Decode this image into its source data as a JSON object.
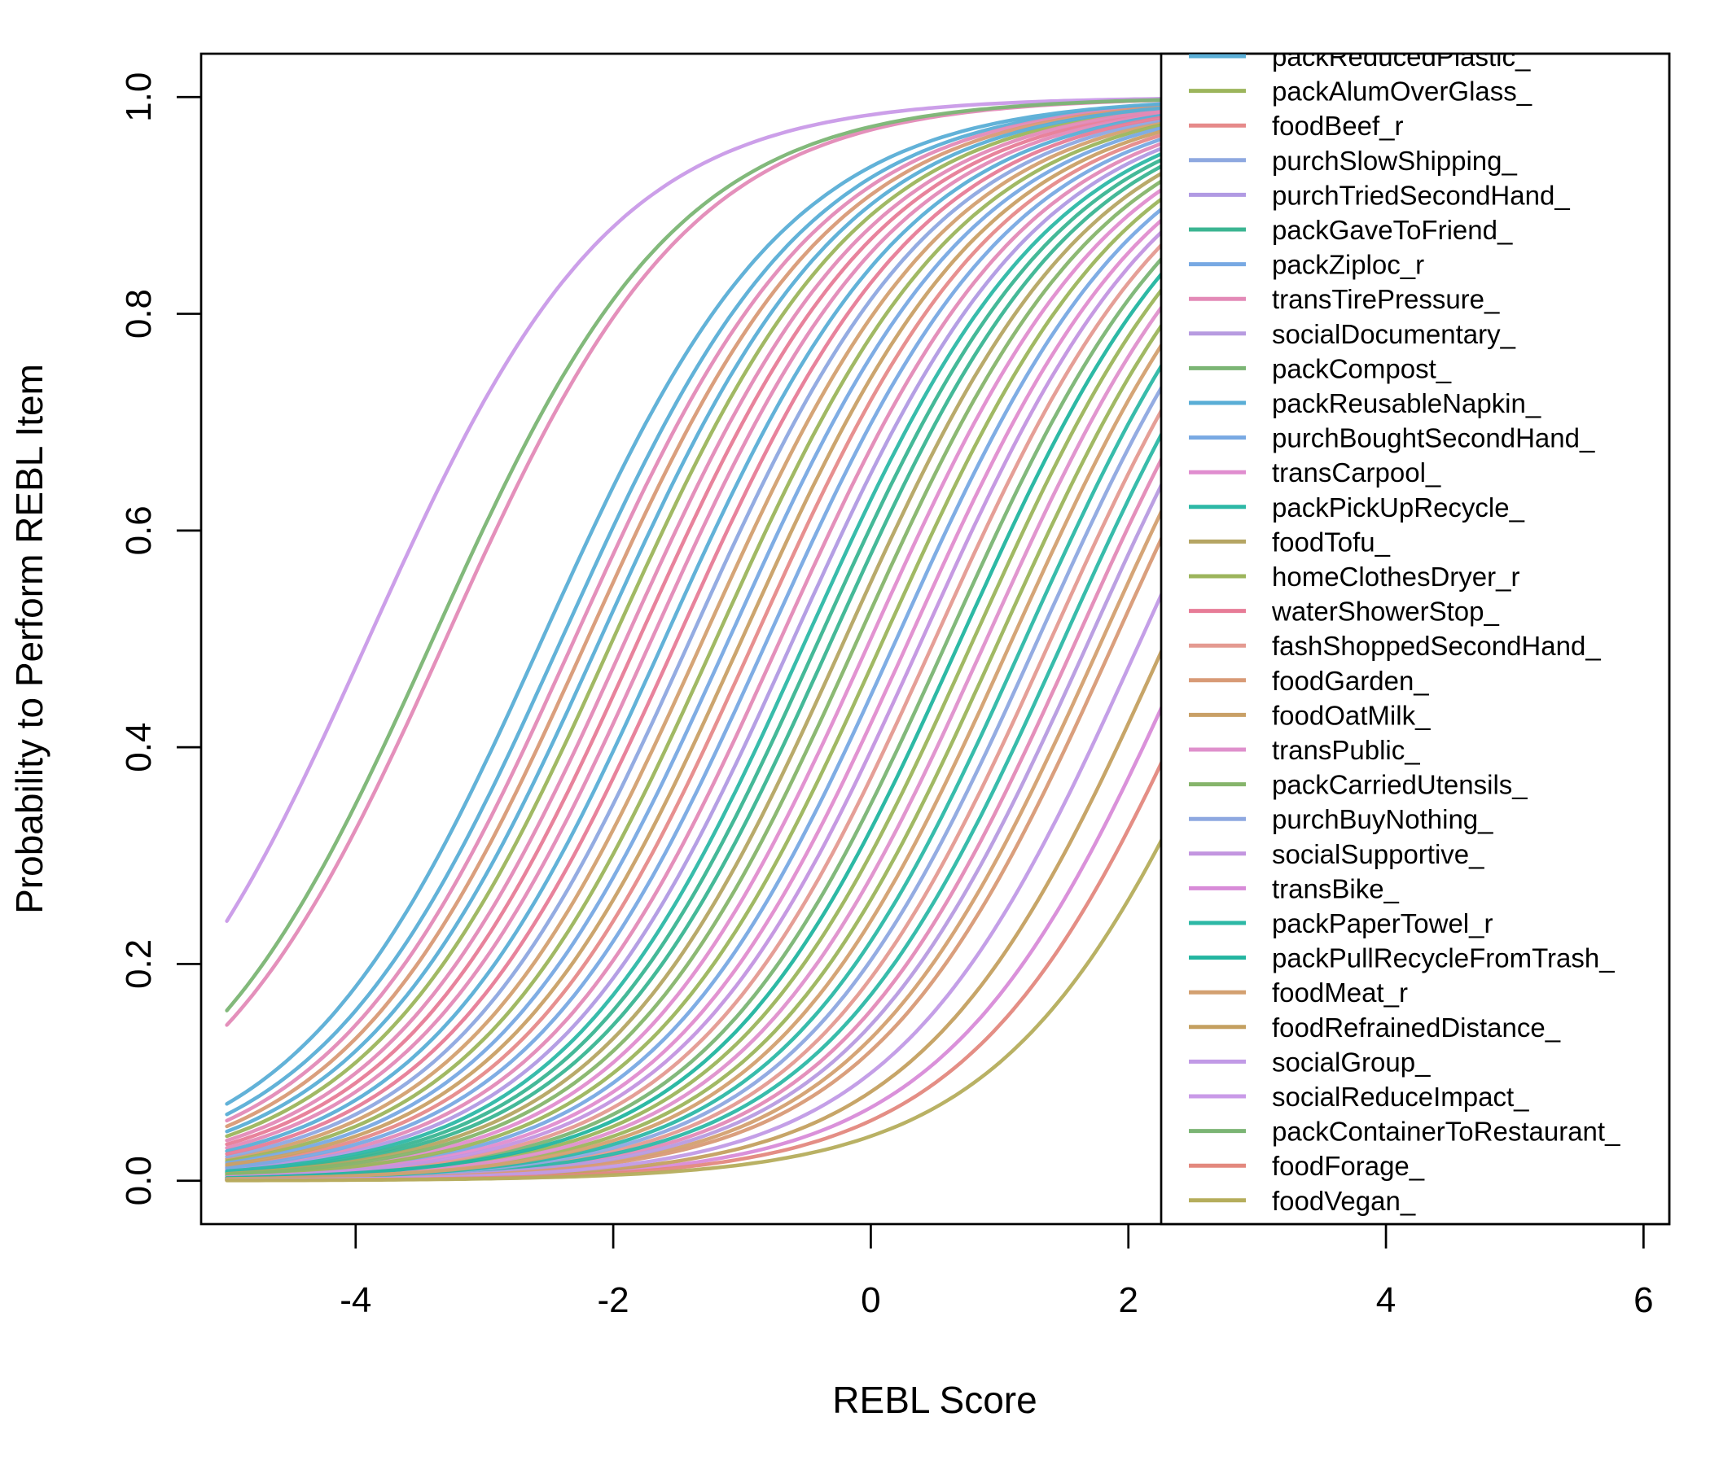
{
  "chart_data": {
    "type": "line",
    "title": "",
    "xlabel": "REBL Score",
    "ylabel": "Probability to Perform REBL Item",
    "xlim": [
      -5.2,
      6.2
    ],
    "ylim": [
      -0.04,
      1.04
    ],
    "x_ticks": [
      "-4",
      "-2",
      "0",
      "2",
      "4",
      "6"
    ],
    "x_tick_values": [
      -4,
      -2,
      0,
      2,
      4,
      6
    ],
    "y_ticks": [
      "0.0",
      "0.2",
      "0.4",
      "0.6",
      "0.8",
      "1.0"
    ],
    "y_tick_values": [
      0,
      0.2,
      0.4,
      0.6,
      0.8,
      1.0
    ],
    "x_range": [
      -5,
      6
    ],
    "legend_position": "top-right",
    "legend_truncated_top": true,
    "model": "logistic: y = 1/(1+exp(-a*(x-b)))",
    "series": [
      {
        "name": "packReducedPlastic_",
        "color": "#5aaed6",
        "a": 1.05,
        "b": -2.55
      },
      {
        "name": "packAlumOverGlass_",
        "color": "#9cb55c",
        "a": 1.05,
        "b": 1.0
      },
      {
        "name": "foodBeef_r",
        "color": "#e68a8a",
        "a": 1.05,
        "b": -0.9
      },
      {
        "name": "purchSlowShipping_",
        "color": "#8ea8e0",
        "a": 1.05,
        "b": -1.4
      },
      {
        "name": "purchTriedSecondHand_",
        "color": "#b19ae3",
        "a": 1.05,
        "b": -0.6
      },
      {
        "name": "packGaveToFriend_",
        "color": "#3bb592",
        "a": 1.05,
        "b": -0.3
      },
      {
        "name": "packZiploc_r",
        "color": "#78a9e3",
        "a": 1.05,
        "b": -1.1
      },
      {
        "name": "transTirePressure_",
        "color": "#e38ab7",
        "a": 1.05,
        "b": -1.9
      },
      {
        "name": "socialDocumentary_",
        "color": "#b79be0",
        "a": 1.05,
        "b": 1.7
      },
      {
        "name": "packCompost_",
        "color": "#7bb574",
        "a": 1.05,
        "b": 0.6
      },
      {
        "name": "packReusableNapkin_",
        "color": "#5aaed6",
        "a": 1.05,
        "b": -2.1
      },
      {
        "name": "purchBoughtSecondHand_",
        "color": "#78a9e3",
        "a": 1.05,
        "b": -0.8
      },
      {
        "name": "transCarpool_",
        "color": "#e08dcf",
        "a": 1.05,
        "b": 0.3
      },
      {
        "name": "packPickUpRecycle_",
        "color": "#2db8a6",
        "a": 1.05,
        "b": -0.5
      },
      {
        "name": "foodTofu_",
        "color": "#b5a563",
        "a": 1.05,
        "b": -0.2
      },
      {
        "name": "homeClothesDryer_r",
        "color": "#9cb55c",
        "a": 1.05,
        "b": 0.1
      },
      {
        "name": "waterShowerStop_",
        "color": "#e77c97",
        "a": 1.05,
        "b": -1.5
      },
      {
        "name": "fashShoppedSecondHand_",
        "color": "#e49a91",
        "a": 1.05,
        "b": 0.5
      },
      {
        "name": "foodGarden_",
        "color": "#d89a76",
        "a": 1.05,
        "b": 1.9
      },
      {
        "name": "foodOatMilk_",
        "color": "#c9a066",
        "a": 1.05,
        "b": -1.0
      },
      {
        "name": "transPublic_",
        "color": "#df90cc",
        "a": 1.05,
        "b": 0.9
      },
      {
        "name": "packCarriedUtensils_",
        "color": "#86b56b",
        "a": 1.05,
        "b": -0.1
      },
      {
        "name": "purchBuyNothing_",
        "color": "#8ea8e0",
        "a": 1.05,
        "b": 1.3
      },
      {
        "name": "socialSupportive_",
        "color": "#c395e0",
        "a": 1.05,
        "b": 0.4
      },
      {
        "name": "transBike_",
        "color": "#d88bd8",
        "a": 1.05,
        "b": 2.5
      },
      {
        "name": "packPaperTowel_r",
        "color": "#2db8a6",
        "a": 1.05,
        "b": 1.2
      },
      {
        "name": "packPullRecycleFromTrash_",
        "color": "#22b5a0",
        "a": 1.05,
        "b": 0.7
      },
      {
        "name": "foodMeat_r",
        "color": "#d3a070",
        "a": 1.05,
        "b": 1.1
      },
      {
        "name": "foodRefrainedDistance_",
        "color": "#c4a060",
        "a": 1.05,
        "b": 2.3
      },
      {
        "name": "socialGroup_",
        "color": "#c19ae6",
        "a": 1.05,
        "b": 2.1
      },
      {
        "name": "socialReduceImpact_",
        "color": "#c99ae8",
        "a": 1.05,
        "b": -3.9
      },
      {
        "name": "packContainerToRestaurant_",
        "color": "#7bb574",
        "a": 1.05,
        "b": -3.4
      },
      {
        "name": "foodForage_",
        "color": "#e3887e",
        "a": 1.05,
        "b": 2.7
      },
      {
        "name": "foodVegan_",
        "color": "#b5ad5c",
        "a": 1.05,
        "b": 3.0
      }
    ],
    "background_series": [
      {
        "color": "#e38ab7",
        "a": 1.05,
        "b": -3.3
      },
      {
        "color": "#5aaed6",
        "a": 1.05,
        "b": -2.4
      },
      {
        "color": "#e38ab7",
        "a": 1.05,
        "b": -2.3
      },
      {
        "color": "#d89a76",
        "a": 1.05,
        "b": -2.2
      },
      {
        "color": "#9cb55c",
        "a": 1.05,
        "b": -2.0
      },
      {
        "color": "#e77c97",
        "a": 1.05,
        "b": -1.8
      },
      {
        "color": "#e38ab7",
        "a": 1.05,
        "b": -1.7
      },
      {
        "color": "#5aaed6",
        "a": 1.05,
        "b": -1.6
      },
      {
        "color": "#d3a070",
        "a": 1.05,
        "b": -1.3
      },
      {
        "color": "#9cb55c",
        "a": 1.05,
        "b": -1.2
      },
      {
        "color": "#e38ab7",
        "a": 1.05,
        "b": -0.7
      },
      {
        "color": "#3bb592",
        "a": 1.05,
        "b": -0.4
      },
      {
        "color": "#e08dcf",
        "a": 1.05,
        "b": 0.0
      },
      {
        "color": "#78a9e3",
        "a": 1.05,
        "b": 0.2
      },
      {
        "color": "#9cb55c",
        "a": 1.05,
        "b": 0.8
      },
      {
        "color": "#e49a91",
        "a": 1.05,
        "b": 1.4
      },
      {
        "color": "#e38ab7",
        "a": 1.05,
        "b": 1.6
      },
      {
        "color": "#2db8a6",
        "a": 1.05,
        "b": 1.5
      },
      {
        "color": "#d3a070",
        "a": 1.05,
        "b": 1.8
      }
    ]
  }
}
